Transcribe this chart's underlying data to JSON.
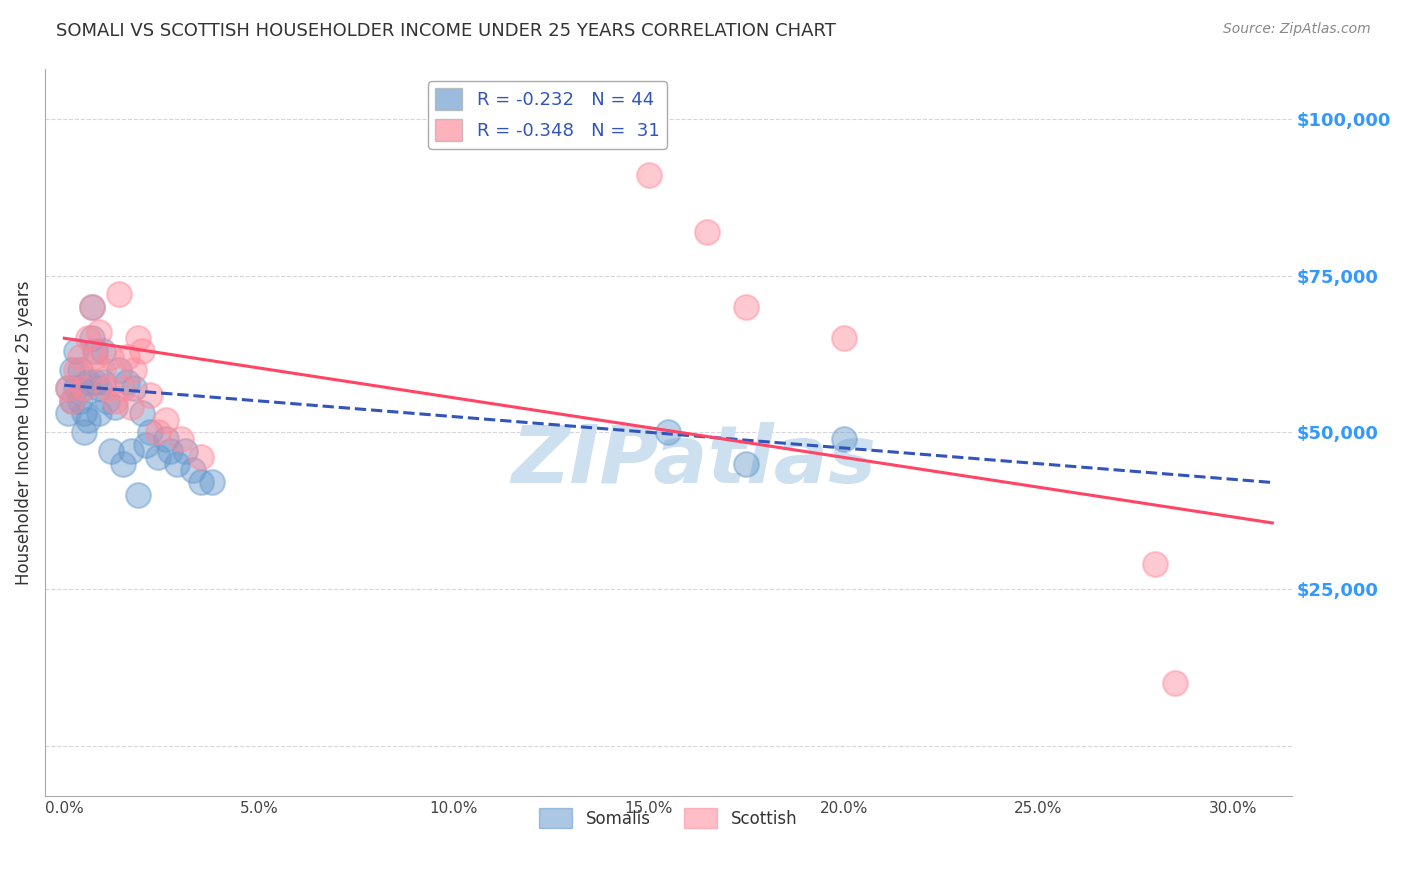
{
  "title": "SOMALI VS SCOTTISH HOUSEHOLDER INCOME UNDER 25 YEARS CORRELATION CHART",
  "source": "Source: ZipAtlas.com",
  "ylabel": "Householder Income Under 25 years",
  "xlabel_ticks": [
    "0.0%",
    "5.0%",
    "10.0%",
    "15.0%",
    "20.0%",
    "25.0%",
    "30.0%"
  ],
  "xlabel_vals": [
    0.0,
    0.05,
    0.1,
    0.15,
    0.2,
    0.25,
    0.3
  ],
  "ylabel_ticks": [
    0,
    25000,
    50000,
    75000,
    100000
  ],
  "ylabel_labels": [
    "",
    "$25,000",
    "$50,000",
    "$75,000",
    "$100,000"
  ],
  "xlim": [
    -0.005,
    0.315
  ],
  "ylim": [
    -8000,
    108000
  ],
  "somali_R": -0.232,
  "somali_N": 44,
  "scottish_R": -0.348,
  "scottish_N": 31,
  "somali_color": "#6699cc",
  "scottish_color": "#ff8899",
  "somali_line_color": "#3355bb",
  "scottish_line_color": "#ff4466",
  "background_color": "#ffffff",
  "grid_color": "#cccccc",
  "title_color": "#333333",
  "right_label_color": "#3399ff",
  "watermark_color": "#cce0f0",
  "watermark_text": "ZIPatlas",
  "somali_x": [
    0.001,
    0.001,
    0.002,
    0.002,
    0.003,
    0.003,
    0.004,
    0.004,
    0.005,
    0.005,
    0.005,
    0.006,
    0.006,
    0.007,
    0.007,
    0.008,
    0.008,
    0.009,
    0.009,
    0.01,
    0.01,
    0.011,
    0.012,
    0.013,
    0.014,
    0.015,
    0.016,
    0.017,
    0.018,
    0.019,
    0.02,
    0.021,
    0.022,
    0.024,
    0.026,
    0.027,
    0.029,
    0.031,
    0.033,
    0.035,
    0.038,
    0.155,
    0.175,
    0.2
  ],
  "somali_y": [
    57000,
    53000,
    60000,
    55000,
    63000,
    57000,
    55000,
    60000,
    57000,
    53000,
    50000,
    58000,
    52000,
    65000,
    70000,
    63000,
    58000,
    57000,
    53000,
    63000,
    58000,
    55000,
    47000,
    54000,
    60000,
    45000,
    58000,
    47000,
    57000,
    40000,
    53000,
    48000,
    50000,
    46000,
    49000,
    47000,
    45000,
    47000,
    44000,
    42000,
    42000,
    50000,
    45000,
    49000
  ],
  "scottish_x": [
    0.001,
    0.002,
    0.003,
    0.004,
    0.005,
    0.006,
    0.007,
    0.008,
    0.009,
    0.01,
    0.011,
    0.012,
    0.013,
    0.014,
    0.015,
    0.016,
    0.017,
    0.018,
    0.019,
    0.02,
    0.022,
    0.024,
    0.026,
    0.03,
    0.035,
    0.15,
    0.165,
    0.175,
    0.2,
    0.28,
    0.285
  ],
  "scottish_y": [
    57000,
    55000,
    60000,
    62000,
    57000,
    65000,
    70000,
    62000,
    66000,
    60000,
    57000,
    62000,
    55000,
    72000,
    57000,
    62000,
    54000,
    60000,
    65000,
    63000,
    56000,
    50000,
    52000,
    49000,
    46000,
    91000,
    82000,
    70000,
    65000,
    29000,
    10000
  ],
  "somali_line_intercept": 57500,
  "somali_line_slope": -50000,
  "scottish_line_intercept": 65000,
  "scottish_line_slope": -95000,
  "legend_box_color": "#ffffff",
  "legend_border_color": "#aaaaaa"
}
